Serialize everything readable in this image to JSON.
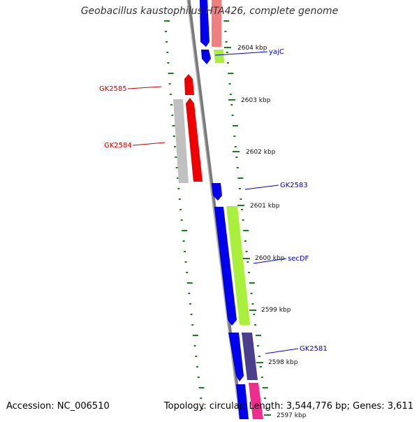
{
  "title": "Geobacillus kaustophilus HTA426, complete genome",
  "footer": {
    "accession": "Accession: NC_006510",
    "summary": "Topology: circular; Length: 3,544,776 bp; Genes: 3,611"
  },
  "colors": {
    "backbone": "#7a7a7a",
    "tick": "#1e7a1e",
    "forward_gene": "#0000ee",
    "reverse_gene_red": "#ee0000",
    "gray_gene": "#c0c0c0",
    "pink_gene": "#f08080",
    "lime_gene": "#a8f03c",
    "slate_gene": "#4b3f8c",
    "magenta_gene": "#ee2d8c"
  },
  "scale_labels": [
    "2604 kbp",
    "2603 kbp",
    "2602 kbp",
    "2601 kbp",
    "2600 kbp",
    "2599 kbp",
    "2598 kbp",
    "2597 kbp"
  ],
  "gene_labels": [
    {
      "name": "yajC",
      "strand": "forward"
    },
    {
      "name": "GK2585",
      "strand": "reverse"
    },
    {
      "name": "GK2584",
      "strand": "reverse"
    },
    {
      "name": "GK2583",
      "strand": "forward"
    },
    {
      "name": "secDF",
      "strand": "forward"
    },
    {
      "name": "GK2581",
      "strand": "forward"
    }
  ]
}
